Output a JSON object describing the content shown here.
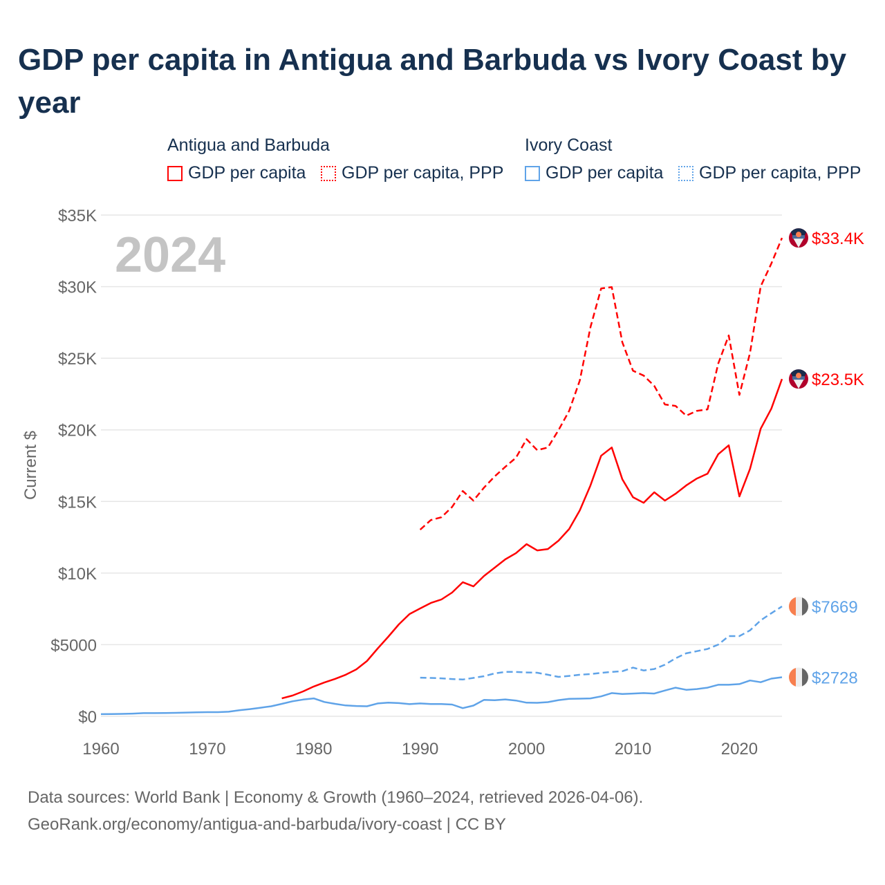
{
  "title": "GDP per capita in Antigua and Barbuda vs Ivory Coast by year",
  "legend": {
    "groups": [
      {
        "name": "Antigua and Barbuda",
        "items": [
          "GDP per capita",
          "GDP per capita, PPP"
        ]
      },
      {
        "name": "Ivory Coast",
        "items": [
          "GDP per capita",
          "GDP per capita, PPP"
        ]
      }
    ]
  },
  "footer": {
    "line1": "Data sources: World Bank | Economy & Growth (1960–2024, retrieved 2026-04-06).",
    "line2": "GeoRank.org/economy/antigua-and-barbuda/ivory-coast | CC BY"
  },
  "colors": {
    "antigua": "#ff0000",
    "ivory": "#5fa3e8",
    "grid": "#e6e6e6",
    "tick": "#666666",
    "year": "#c4c4c4"
  },
  "chart_data": {
    "type": "line",
    "title": "GDP per capita in Antigua and Barbuda vs Ivory Coast by year",
    "year_label": "2024",
    "ylabel": "Current $",
    "xlabel": "",
    "xlim": [
      1960,
      2024
    ],
    "ylim": [
      0,
      35000
    ],
    "xticks": [
      1960,
      1970,
      1980,
      1990,
      2000,
      2010,
      2020
    ],
    "xtick_labels": [
      "1960",
      "1970",
      "1980",
      "1990",
      "2000",
      "2010",
      "2020"
    ],
    "yticks": [
      0,
      5000,
      10000,
      15000,
      20000,
      25000,
      30000,
      35000
    ],
    "ytick_labels": [
      "$0",
      "$5000",
      "$10K",
      "$15K",
      "$20K",
      "$25K",
      "$30K",
      "$35K"
    ],
    "grid": true,
    "legend_position": "top",
    "series": [
      {
        "name": "Antigua and Barbuda GDP per capita",
        "country": "antigua",
        "dashed": false,
        "start": 1977,
        "end_label": "$23.5K",
        "values": [
          1250,
          1450,
          1740,
          2080,
          2360,
          2610,
          2900,
          3280,
          3860,
          4730,
          5550,
          6420,
          7140,
          7530,
          7910,
          8160,
          8640,
          9360,
          9070,
          9800,
          10380,
          10960,
          11390,
          12020,
          11580,
          11680,
          12260,
          13080,
          14380,
          16120,
          18190,
          18770,
          16550,
          15300,
          14910,
          15640,
          15060,
          15540,
          16120,
          16600,
          16940,
          18290,
          18920,
          15350,
          17280,
          20080,
          21480,
          23550
        ]
      },
      {
        "name": "Antigua and Barbuda GDP per capita, PPP",
        "country": "antigua",
        "dashed": true,
        "start": 1990,
        "end_label": "$33.4K",
        "values": [
          13030,
          13700,
          13900,
          14620,
          15730,
          15060,
          15970,
          16750,
          17420,
          18050,
          19350,
          18580,
          18770,
          19980,
          21330,
          23450,
          27170,
          29870,
          29970,
          26110,
          24130,
          23790,
          23070,
          21770,
          21670,
          20990,
          21330,
          21430,
          24610,
          26590,
          22440,
          25380,
          30020,
          31610,
          33400
        ]
      },
      {
        "name": "Ivory Coast GDP per capita",
        "country": "ivory",
        "dashed": false,
        "start": 1960,
        "end_label": "$2728",
        "values": [
          150,
          160,
          170,
          190,
          220,
          220,
          230,
          240,
          260,
          280,
          290,
          290,
          320,
          420,
          500,
          600,
          700,
          870,
          1050,
          1170,
          1250,
          1000,
          870,
          760,
          720,
          700,
          900,
          950,
          920,
          850,
          900,
          860,
          860,
          820,
          570,
          750,
          1150,
          1120,
          1180,
          1100,
          950,
          940,
          990,
          1130,
          1220,
          1230,
          1250,
          1390,
          1620,
          1560,
          1590,
          1620,
          1590,
          1800,
          2000,
          1850,
          1900,
          2000,
          2200,
          2200,
          2250,
          2500,
          2380,
          2630,
          2728
        ]
      },
      {
        "name": "Ivory Coast GDP per capita, PPP",
        "country": "ivory",
        "dashed": true,
        "start": 1990,
        "end_label": "$7669",
        "values": [
          2700,
          2680,
          2650,
          2600,
          2570,
          2680,
          2800,
          3000,
          3100,
          3100,
          3060,
          3040,
          2900,
          2750,
          2820,
          2900,
          2950,
          3030,
          3100,
          3150,
          3400,
          3200,
          3300,
          3600,
          4050,
          4400,
          4550,
          4700,
          5000,
          5600,
          5600,
          6000,
          6700,
          7200,
          7669
        ]
      }
    ]
  }
}
